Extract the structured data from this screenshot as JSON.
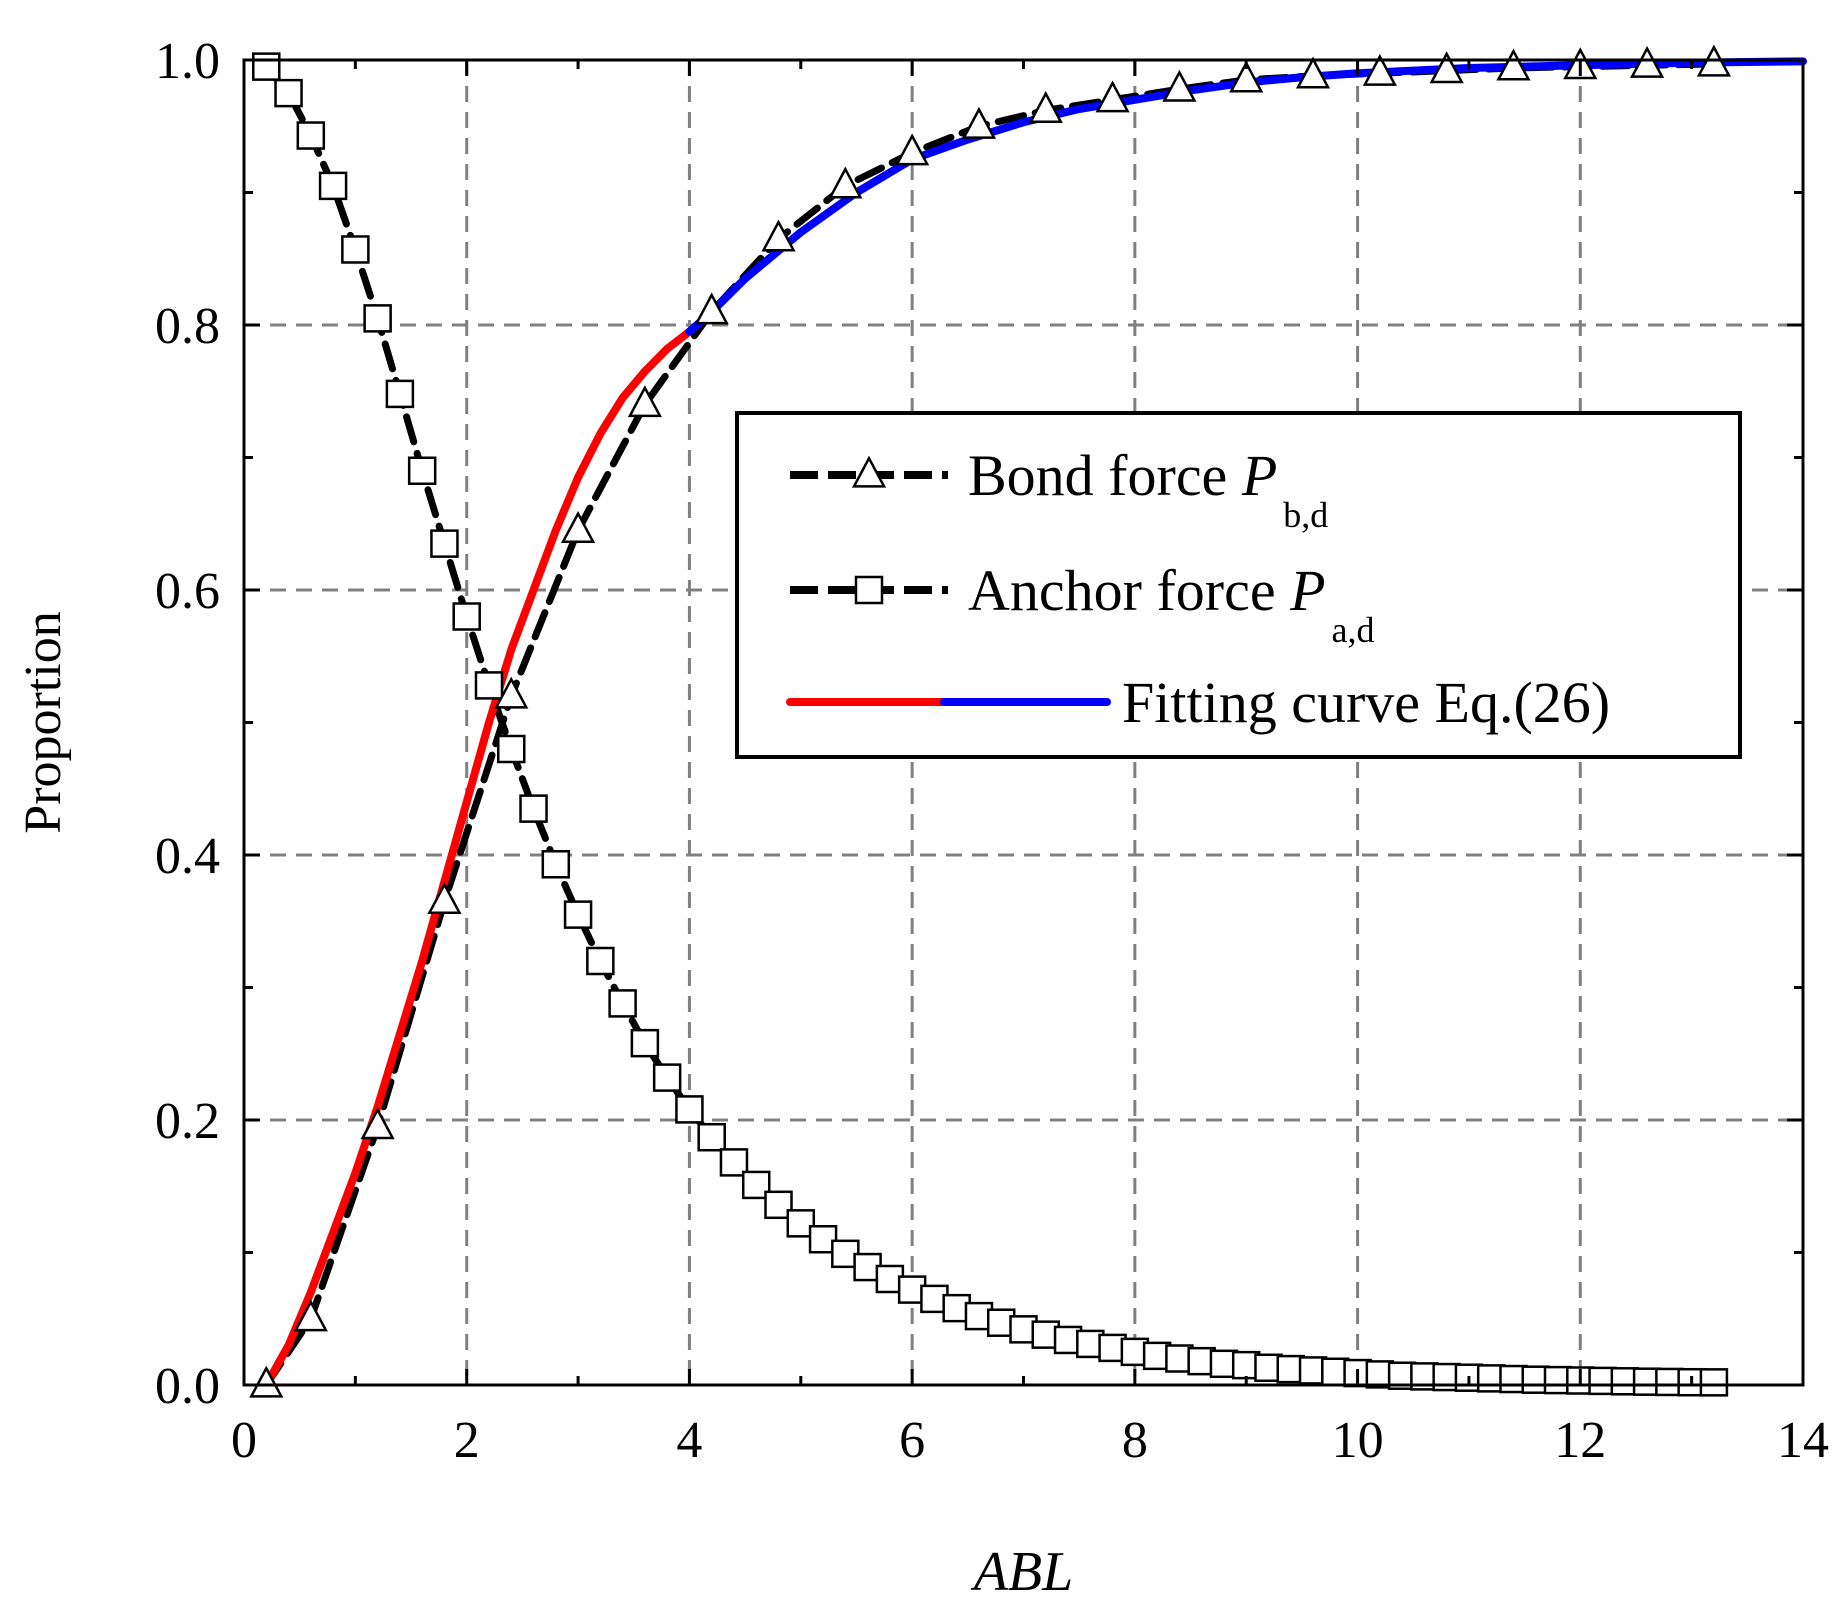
{
  "chart_data": {
    "type": "line",
    "title": "",
    "xlabel": "ABL",
    "ylabel": "Proportion",
    "xlim": [
      0,
      14
    ],
    "ylim": [
      0,
      1.0
    ],
    "x_ticks": [
      "0",
      "2",
      "4",
      "6",
      "8",
      "10",
      "12",
      "14"
    ],
    "y_ticks": [
      "0.0",
      "0.2",
      "0.4",
      "0.6",
      "0.8",
      "1.0"
    ],
    "grid": "dashed at major ticks",
    "legend_position": "center-right",
    "legend": [
      {
        "label": "Bond force ",
        "symbol": "P",
        "subscript": "b,d",
        "marker": "triangle",
        "line": "black-dashed"
      },
      {
        "label": "Anchor force ",
        "symbol": "P",
        "subscript": "a,d",
        "marker": "square",
        "line": "black-dashed"
      },
      {
        "label": "Fitting curve Eq.(26)",
        "marker": "none",
        "line": "red-blue"
      }
    ],
    "colors": {
      "data": "#000000",
      "fit_low": "#ff0000",
      "fit_high": "#0000ff",
      "grid": "#808080"
    },
    "series": [
      {
        "name": "Bond force P_b,d",
        "marker": "triangle",
        "x": [
          0.2,
          0.6,
          1.2,
          1.8,
          2.4,
          3.0,
          3.6,
          4.2,
          4.8,
          5.4,
          6.0,
          6.6,
          7.2,
          7.8,
          8.4,
          9.0,
          9.6,
          10.2,
          10.8,
          11.4,
          12.0,
          12.6,
          13.2
        ],
        "y": [
          0.0,
          0.05,
          0.195,
          0.365,
          0.52,
          0.645,
          0.74,
          0.81,
          0.865,
          0.905,
          0.93,
          0.95,
          0.962,
          0.97,
          0.978,
          0.985,
          0.988,
          0.99,
          0.992,
          0.994,
          0.995,
          0.996,
          0.997
        ]
      },
      {
        "name": "Anchor force P_a,d",
        "marker": "square",
        "x": [
          0.2,
          0.4,
          0.6,
          0.8,
          1.0,
          1.2,
          1.4,
          1.6,
          1.8,
          2.0,
          2.2,
          2.4,
          2.6,
          2.8,
          3.0,
          3.2,
          3.4,
          3.6,
          3.8,
          4.0,
          4.2,
          4.4,
          4.6,
          4.8,
          5.0,
          5.2,
          5.4,
          5.6,
          5.8,
          6.0,
          6.2,
          6.4,
          6.6,
          6.8,
          7.0,
          7.2,
          7.4,
          7.6,
          7.8,
          8.0,
          8.2,
          8.4,
          8.6,
          8.8,
          9.0,
          9.2,
          9.4,
          9.6,
          9.8,
          10.0,
          10.2,
          10.4,
          10.6,
          10.8,
          11.0,
          11.2,
          11.4,
          11.6,
          11.8,
          12.0,
          12.2,
          12.4,
          12.6,
          12.8,
          13.0,
          13.2
        ],
        "y": [
          0.995,
          0.975,
          0.943,
          0.905,
          0.857,
          0.805,
          0.748,
          0.69,
          0.635,
          0.58,
          0.528,
          0.48,
          0.435,
          0.393,
          0.355,
          0.32,
          0.288,
          0.258,
          0.232,
          0.208,
          0.187,
          0.168,
          0.151,
          0.136,
          0.122,
          0.11,
          0.099,
          0.089,
          0.08,
          0.072,
          0.065,
          0.058,
          0.052,
          0.047,
          0.042,
          0.038,
          0.034,
          0.031,
          0.028,
          0.025,
          0.022,
          0.02,
          0.018,
          0.016,
          0.015,
          0.013,
          0.012,
          0.011,
          0.01,
          0.009,
          0.008,
          0.007,
          0.0065,
          0.006,
          0.0055,
          0.005,
          0.0045,
          0.004,
          0.0037,
          0.0034,
          0.0031,
          0.0028,
          0.0025,
          0.0023,
          0.0021,
          0.002
        ]
      },
      {
        "name": "Fitting curve Eq.(26)",
        "marker": "none",
        "x": [
          0.2,
          0.4,
          0.6,
          0.8,
          1.0,
          1.2,
          1.4,
          1.6,
          1.8,
          2.0,
          2.2,
          2.4,
          2.6,
          2.8,
          3.0,
          3.2,
          3.4,
          3.6,
          3.8,
          4.0,
          4.2,
          4.5,
          5.0,
          5.5,
          6.0,
          6.5,
          7.0,
          7.5,
          8.0,
          8.5,
          9.0,
          9.5,
          10.0,
          11.0,
          12.0,
          13.0,
          14.0
        ],
        "y": [
          0.0,
          0.03,
          0.07,
          0.115,
          0.16,
          0.21,
          0.265,
          0.32,
          0.38,
          0.44,
          0.5,
          0.555,
          0.6,
          0.645,
          0.685,
          0.718,
          0.745,
          0.765,
          0.782,
          0.795,
          0.81,
          0.835,
          0.87,
          0.9,
          0.925,
          0.94,
          0.953,
          0.963,
          0.97,
          0.977,
          0.983,
          0.987,
          0.99,
          0.994,
          0.996,
          0.998,
          0.999
        ],
        "split_at_x": 4.0
      }
    ]
  }
}
